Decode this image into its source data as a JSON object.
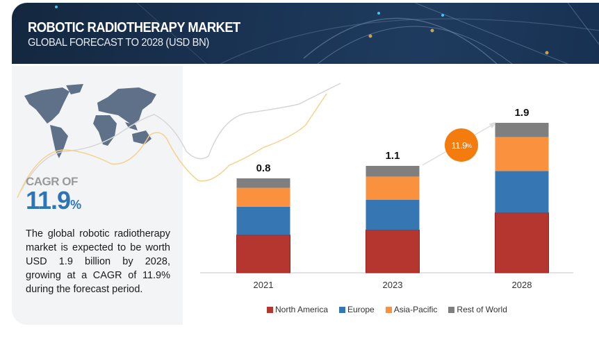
{
  "header": {
    "title": "ROBOTIC RADIOTHERAPY MARKET",
    "subtitle": "GLOBAL FORECAST TO 2028 (USD BN)"
  },
  "left_panel": {
    "cagr_label": "CAGR OF",
    "cagr_value": "11.9",
    "cagr_unit": "%",
    "description": "The global robotic radiotherapy market is expected to be worth USD 1.9 billion by 2028, growing at a CAGR of 11.9% during the forecast period."
  },
  "growth_bubble": {
    "value": "11.9",
    "unit": "%"
  },
  "colors": {
    "north_america": "#b5352f",
    "europe": "#3576b3",
    "asia_pacific": "#f9913f",
    "rest_of_world": "#7f7f7f",
    "accent": "#f47c0f",
    "header_bg": "#1a3353"
  },
  "chart_data": {
    "type": "bar",
    "stacked": true,
    "title": "Robotic Radiotherapy Market, Global Forecast to 2028 (USD BN)",
    "xlabel": "",
    "ylabel": "USD BN",
    "categories": [
      "2021",
      "2023",
      "2028"
    ],
    "totals": [
      0.8,
      1.1,
      1.9
    ],
    "total_labels": [
      "0.8",
      "1.1",
      "1.9"
    ],
    "series": [
      {
        "name": "North America",
        "color": "#b5352f",
        "values": [
          0.32,
          0.44,
          0.76
        ]
      },
      {
        "name": "Europe",
        "color": "#3576b3",
        "values": [
          0.24,
          0.31,
          0.53
        ]
      },
      {
        "name": "Asia-Pacific",
        "color": "#f9913f",
        "values": [
          0.16,
          0.24,
          0.43
        ]
      },
      {
        "name": "Rest of World",
        "color": "#7f7f7f",
        "values": [
          0.08,
          0.11,
          0.18
        ]
      }
    ],
    "ylim": [
      0,
      1.9
    ],
    "grid": false,
    "legend": "bottom-center",
    "annotation": "11.9%"
  }
}
